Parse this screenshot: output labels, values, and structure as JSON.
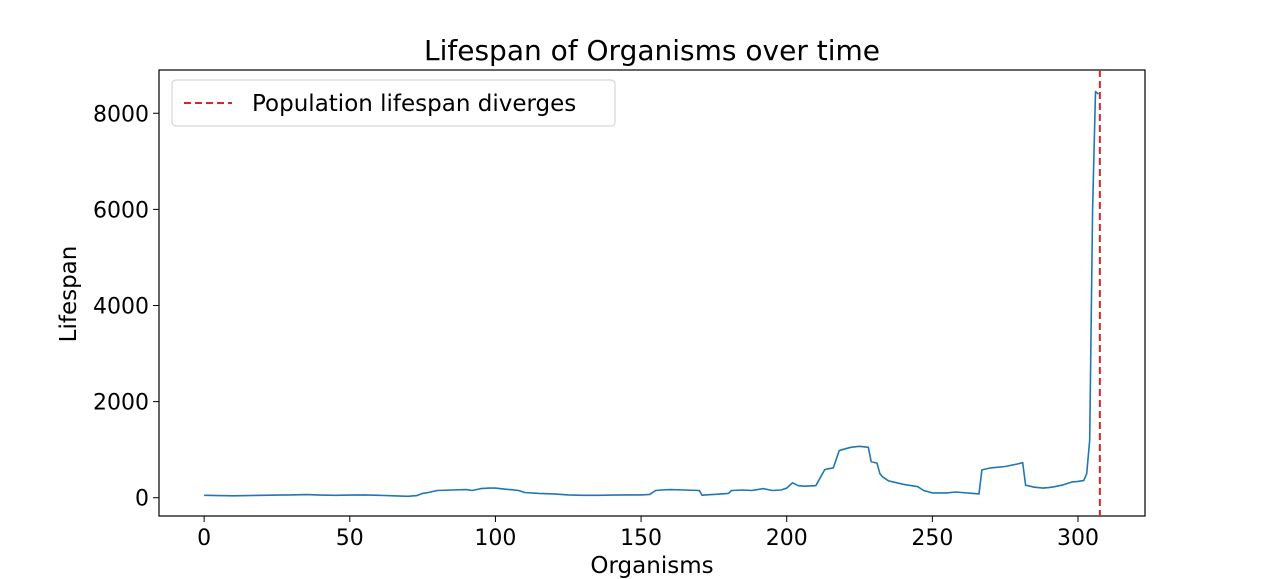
{
  "chart_data": {
    "type": "line",
    "title": "Lifespan of Organisms over time",
    "xlabel": "Organisms",
    "ylabel": "Lifespan",
    "xlim": [
      -15.5,
      323
    ],
    "ylim": [
      -380,
      8900
    ],
    "xticks": [
      0,
      50,
      100,
      150,
      200,
      250,
      300
    ],
    "yticks": [
      0,
      2000,
      4000,
      6000,
      8000
    ],
    "grid": false,
    "legend": {
      "placement": "top-left",
      "entries": [
        "Population lifespan diverges"
      ]
    },
    "series": [
      {
        "color": "#1f77b4",
        "x": [
          0,
          5,
          10,
          15,
          20,
          25,
          30,
          35,
          40,
          45,
          50,
          55,
          60,
          65,
          70,
          73,
          75,
          77,
          80,
          85,
          90,
          92,
          95,
          98,
          100,
          103,
          105,
          108,
          110,
          115,
          120,
          125,
          130,
          135,
          140,
          145,
          150,
          153,
          155,
          157,
          160,
          165,
          170,
          171,
          172,
          175,
          180,
          181,
          185,
          188,
          190,
          192,
          195,
          198,
          200,
          202,
          204,
          206,
          210,
          213,
          214,
          216,
          218,
          219,
          222,
          225,
          228,
          229,
          231,
          232,
          233,
          235,
          240,
          245,
          247,
          250,
          255,
          258,
          260,
          264,
          266,
          267,
          270,
          275,
          279,
          281,
          282,
          285,
          288,
          290,
          292,
          295,
          298,
          300,
          302,
          303,
          304,
          305,
          306,
          307
        ],
        "y": [
          50,
          45,
          40,
          45,
          50,
          55,
          60,
          65,
          55,
          50,
          55,
          60,
          50,
          40,
          30,
          45,
          90,
          110,
          150,
          160,
          170,
          150,
          190,
          200,
          200,
          180,
          170,
          150,
          110,
          90,
          80,
          60,
          50,
          50,
          55,
          60,
          60,
          70,
          150,
          160,
          170,
          160,
          150,
          50,
          60,
          70,
          90,
          150,
          160,
          150,
          170,
          190,
          150,
          160,
          200,
          310,
          250,
          240,
          250,
          580,
          600,
          620,
          980,
          1000,
          1050,
          1070,
          1050,
          750,
          720,
          500,
          430,
          350,
          280,
          230,
          150,
          100,
          100,
          120,
          110,
          90,
          80,
          580,
          620,
          650,
          700,
          730,
          260,
          220,
          200,
          210,
          230,
          270,
          330,
          340,
          360,
          500,
          1200,
          6000,
          8450,
          8400
        ]
      }
    ],
    "annotations": [
      {
        "type": "vline",
        "x": 307.5,
        "color": "#d62728",
        "style": "dashed",
        "label": "Population lifespan diverges"
      }
    ]
  }
}
